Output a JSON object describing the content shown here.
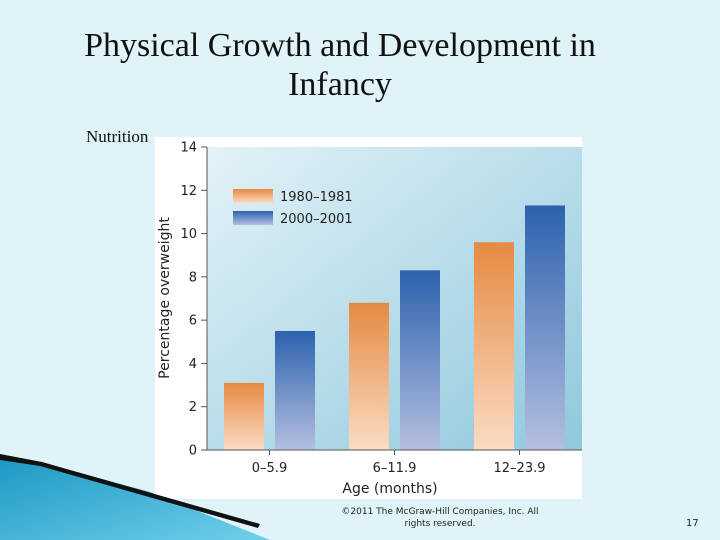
{
  "slide": {
    "title": "Physical Growth and Development in Infancy",
    "bullet": "Nutrition",
    "copyright": "©2011 The McGraw-Hill Companies, Inc. All rights reserved.",
    "page_number": "17"
  },
  "colors": {
    "series_1980": "#e89048",
    "series_2000": "#2f66b0",
    "background": "#dff3f9"
  },
  "chart_data": {
    "type": "bar",
    "title": "",
    "xlabel": "Age (months)",
    "ylabel": "Percentage overweight",
    "ylim": [
      0,
      14
    ],
    "yticks": [
      0,
      2,
      4,
      6,
      8,
      10,
      12,
      14
    ],
    "grid": false,
    "legend_position": "top-left",
    "categories": [
      "0–5.9",
      "6–11.9",
      "12–23.9"
    ],
    "series": [
      {
        "name": "1980–1981",
        "values": [
          3.1,
          6.8,
          9.6
        ]
      },
      {
        "name": "2000–2001",
        "values": [
          5.5,
          8.3,
          11.3
        ]
      }
    ]
  }
}
